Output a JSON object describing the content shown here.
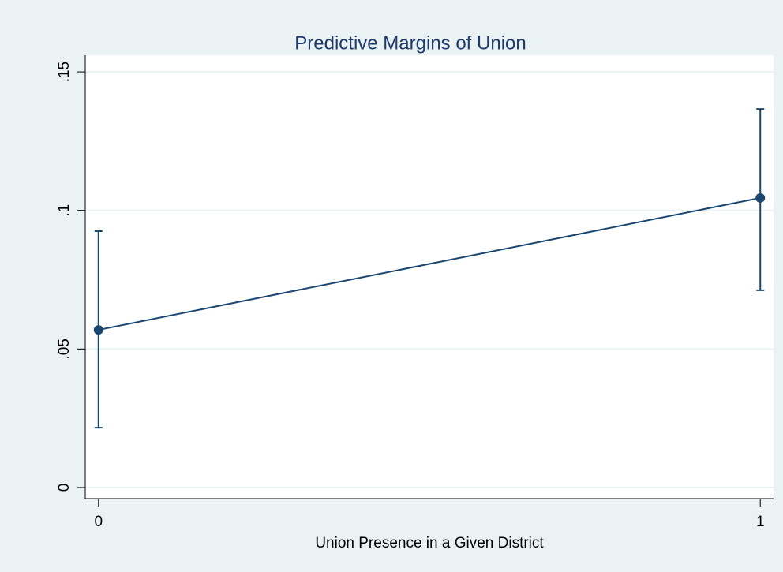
{
  "chart_data": {
    "type": "line",
    "title": "Predictive Margins of Union",
    "x_label": "Union Presence in a Given District",
    "x": [
      0,
      1
    ],
    "series": [
      {
        "color": "#1a476f",
        "values": [
          0.0569,
          0.1045
        ],
        "ci_lower": [
          0.0216,
          0.0712
        ],
        "ci_upper": [
          0.0925,
          0.1366
        ]
      }
    ],
    "xlim": [
      -0.02,
      1.02
    ],
    "xticks": [
      0,
      1
    ],
    "ylim": [
      -0.004,
      0.156
    ],
    "yticks": [
      0,
      {
        "value": 0.05,
        "label": ".05"
      },
      {
        "value": 0.1,
        "label": ".1"
      },
      {
        "value": 0.15,
        "label": ".15"
      }
    ],
    "grid": true
  }
}
